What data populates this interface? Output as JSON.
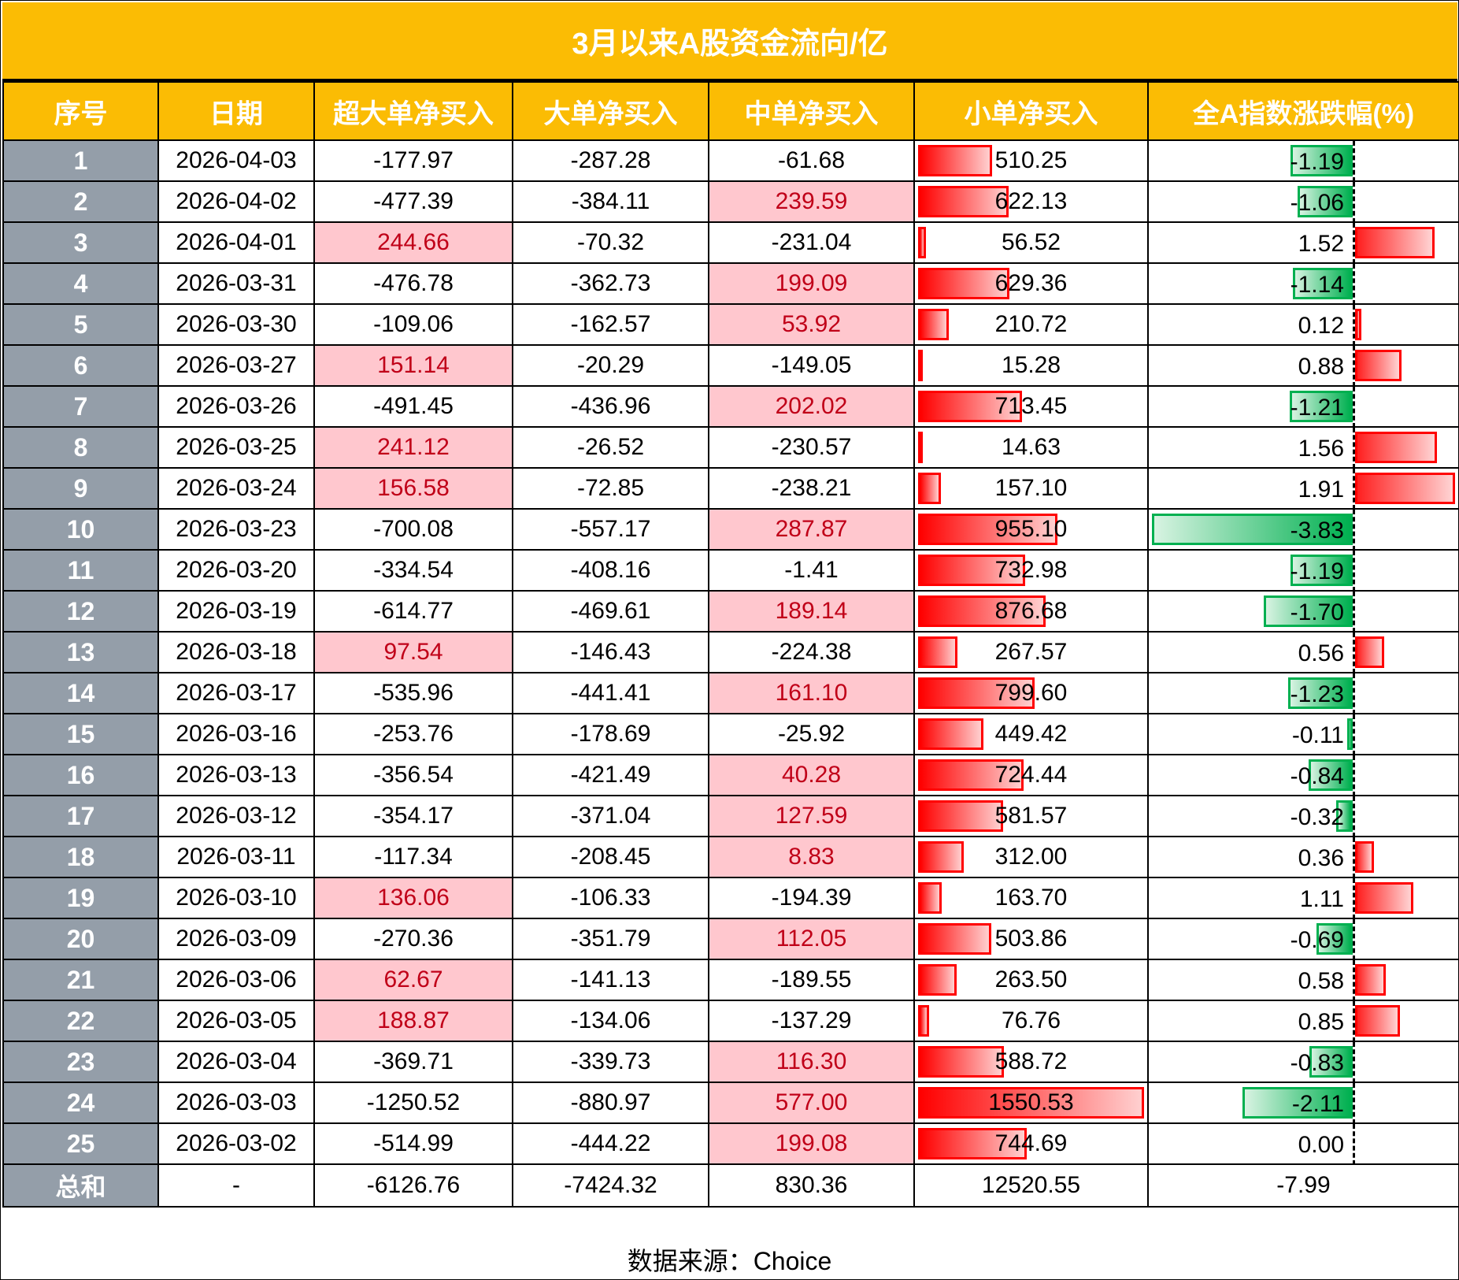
{
  "title": "3月以来A股资金流向/亿",
  "headers": [
    "序号",
    "日期",
    "超大单净买入",
    "大单净买入",
    "中单净买入",
    "小单净买入",
    "全A指数涨跌幅(%)"
  ],
  "rows": [
    [
      "1",
      "2026-04-03",
      "-177.97",
      "-287.28",
      "-61.68",
      "510.25",
      "-1.19"
    ],
    [
      "2",
      "2026-04-02",
      "-477.39",
      "-384.11",
      "239.59",
      "622.13",
      "-1.06"
    ],
    [
      "3",
      "2026-04-01",
      "244.66",
      "-70.32",
      "-231.04",
      "56.52",
      "1.52"
    ],
    [
      "4",
      "2026-03-31",
      "-476.78",
      "-362.73",
      "199.09",
      "629.36",
      "-1.14"
    ],
    [
      "5",
      "2026-03-30",
      "-109.06",
      "-162.57",
      "53.92",
      "210.72",
      "0.12"
    ],
    [
      "6",
      "2026-03-27",
      "151.14",
      "-20.29",
      "-149.05",
      "15.28",
      "0.88"
    ],
    [
      "7",
      "2026-03-26",
      "-491.45",
      "-436.96",
      "202.02",
      "713.45",
      "-1.21"
    ],
    [
      "8",
      "2026-03-25",
      "241.12",
      "-26.52",
      "-230.57",
      "14.63",
      "1.56"
    ],
    [
      "9",
      "2026-03-24",
      "156.58",
      "-72.85",
      "-238.21",
      "157.10",
      "1.91"
    ],
    [
      "10",
      "2026-03-23",
      "-700.08",
      "-557.17",
      "287.87",
      "955.10",
      "-3.83"
    ],
    [
      "11",
      "2026-03-20",
      "-334.54",
      "-408.16",
      "-1.41",
      "732.98",
      "-1.19"
    ],
    [
      "12",
      "2026-03-19",
      "-614.77",
      "-469.61",
      "189.14",
      "876.68",
      "-1.70"
    ],
    [
      "13",
      "2026-03-18",
      "97.54",
      "-146.43",
      "-224.38",
      "267.57",
      "0.56"
    ],
    [
      "14",
      "2026-03-17",
      "-535.96",
      "-441.41",
      "161.10",
      "799.60",
      "-1.23"
    ],
    [
      "15",
      "2026-03-16",
      "-253.76",
      "-178.69",
      "-25.92",
      "449.42",
      "-0.11"
    ],
    [
      "16",
      "2026-03-13",
      "-356.54",
      "-421.49",
      "40.28",
      "724.44",
      "-0.84"
    ],
    [
      "17",
      "2026-03-12",
      "-354.17",
      "-371.04",
      "127.59",
      "581.57",
      "-0.32"
    ],
    [
      "18",
      "2026-03-11",
      "-117.34",
      "-208.45",
      "8.83",
      "312.00",
      "0.36"
    ],
    [
      "19",
      "2026-03-10",
      "136.06",
      "-106.33",
      "-194.39",
      "163.70",
      "1.11"
    ],
    [
      "20",
      "2026-03-09",
      "-270.36",
      "-351.79",
      "112.05",
      "503.86",
      "-0.69"
    ],
    [
      "21",
      "2026-03-06",
      "62.67",
      "-141.13",
      "-189.55",
      "263.50",
      "0.58"
    ],
    [
      "22",
      "2026-03-05",
      "188.87",
      "-134.06",
      "-137.29",
      "76.76",
      "0.85"
    ],
    [
      "23",
      "2026-03-04",
      "-369.71",
      "-339.73",
      "116.30",
      "588.72",
      "-0.83"
    ],
    [
      "24",
      "2026-03-03",
      "-1250.52",
      "-880.97",
      "577.00",
      "1550.53",
      "-2.11"
    ],
    [
      "25",
      "2026-03-02",
      "-514.99",
      "-444.22",
      "199.08",
      "744.69",
      "0.00"
    ]
  ],
  "total": [
    "总和",
    "-",
    "-6126.76",
    "-7424.32",
    "830.36",
    "12520.55",
    "-7.99"
  ],
  "footer": "数据来源：Choice",
  "colors": {
    "header_bg": "#fbbc04",
    "index_bg": "#949ea9",
    "positive_bg": "#ffc7ce",
    "positive_text": "#c00018",
    "bar_red": "#ff0000",
    "bar_green": "#00b050"
  },
  "databar_max": {
    "small_order": 1550.53,
    "index_change_min": -3.83,
    "index_change_max": 1.91
  }
}
